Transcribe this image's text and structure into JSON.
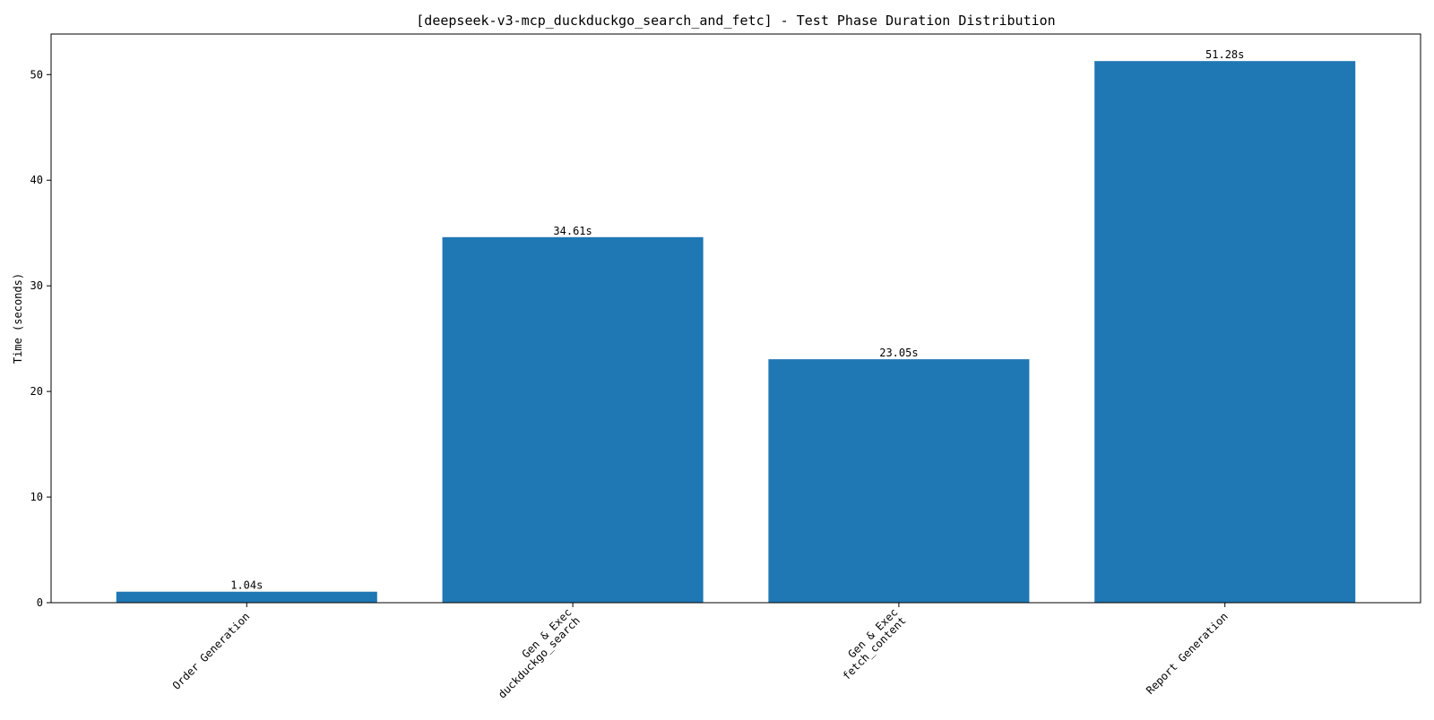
{
  "chart_data": {
    "type": "bar",
    "title": "[deepseek-v3-mcp_duckduckgo_search_and_fetc] - Test Phase Duration Distribution",
    "xlabel": "",
    "ylabel": "Time (seconds)",
    "categories": [
      [
        "Order Generation"
      ],
      [
        "Gen & Exec",
        "duckduckgo_search"
      ],
      [
        "Gen & Exec",
        "fetch_content"
      ],
      [
        "Report Generation"
      ]
    ],
    "values": [
      1.04,
      34.61,
      23.05,
      51.28
    ],
    "value_labels": [
      "1.04s",
      "34.61s",
      "23.05s",
      "51.28s"
    ],
    "ylim": [
      0,
      53.84
    ],
    "yticks": [
      0,
      10,
      20,
      30,
      40,
      50
    ],
    "grid": false,
    "legend": "none",
    "colors": {
      "bar": "#1f77b4",
      "axis": "#000000"
    }
  }
}
